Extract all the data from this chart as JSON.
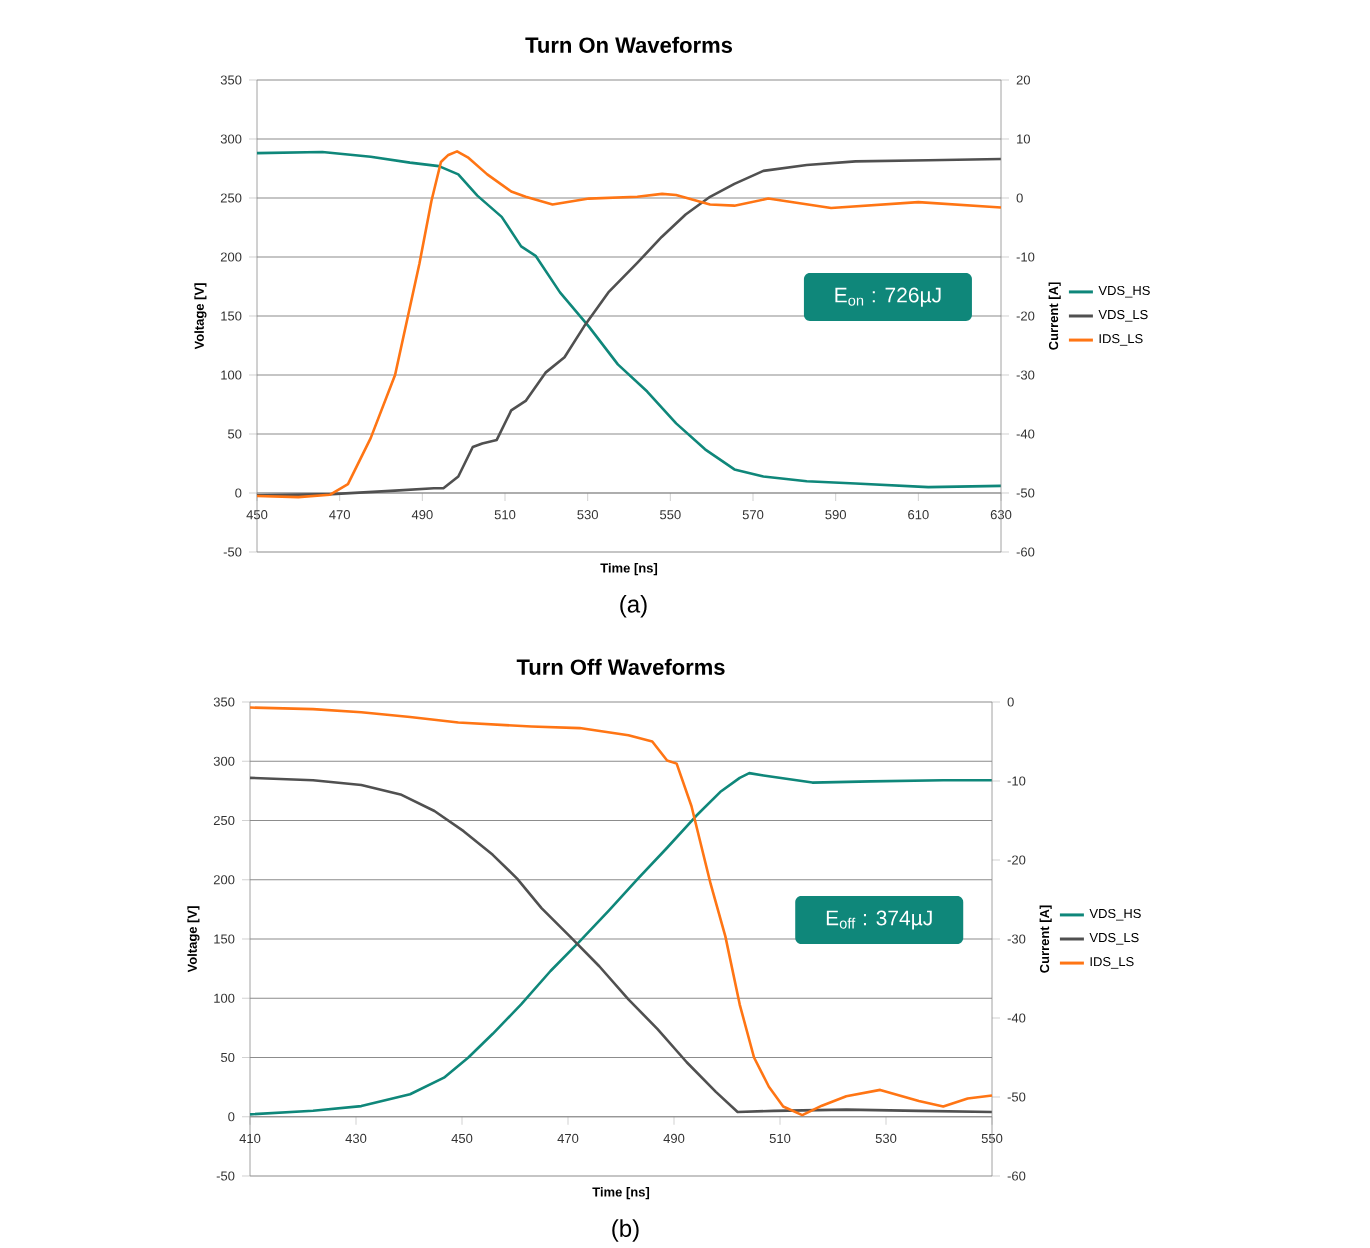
{
  "chart_data": [
    {
      "type": "line",
      "title": "Turn On Waveforms",
      "xlabel": "Time [ns]",
      "ylabel": "Voltage [V]",
      "y2label": "Current [A]",
      "xlim": [
        450,
        630
      ],
      "ylim": [
        -50,
        350
      ],
      "y2lim": [
        -60,
        20
      ],
      "xticks": [
        450,
        470,
        490,
        510,
        530,
        550,
        570,
        590,
        610,
        630
      ],
      "yticks": [
        -50,
        0,
        50,
        100,
        150,
        200,
        250,
        300,
        350
      ],
      "y2ticks": [
        -60,
        -50,
        -40,
        -30,
        -20,
        -10,
        0,
        10,
        20
      ],
      "grid": "y",
      "legend": "right",
      "annotations": [
        "E$_{on}$ : 726µJ",
        "(a)"
      ],
      "series": [
        {
          "name": "VDS_HS",
          "color": "#0f877a",
          "x": [
            450,
            465.8,
            477.5,
            487,
            494,
            498.7,
            503.3,
            509.2,
            513.9,
            517.4,
            523.3,
            530.3,
            537.3,
            544.4,
            551.4,
            558.4,
            565.5,
            572.5,
            583,
            594.8,
            612.4,
            630
          ],
          "values": [
            288,
            289,
            285,
            280,
            277,
            270,
            252,
            234,
            209,
            201,
            170,
            141,
            109,
            86,
            59,
            37,
            20,
            14,
            10,
            8,
            5,
            6
          ]
        },
        {
          "name": "VDS_LS",
          "color": "#505050",
          "x": [
            450,
            468.2,
            483.4,
            492.8,
            495.1,
            498.7,
            502.2,
            504.5,
            508,
            511.5,
            515,
            519.8,
            524.4,
            529.1,
            535,
            542,
            547.9,
            553.7,
            559.6,
            565.5,
            572.5,
            583,
            594.8,
            612.4,
            630
          ],
          "values": [
            -2,
            -1,
            2,
            4,
            4,
            14,
            39,
            42,
            45,
            70,
            78,
            102,
            115,
            141,
            170,
            195,
            217,
            236,
            251,
            262,
            273,
            278,
            281,
            282,
            283
          ]
        },
        {
          "name": "IDS_LS",
          "color": "#ff7514",
          "axis": "y2",
          "x": [
            450,
            460,
            467.6,
            472,
            477.5,
            483.4,
            489.3,
            492.2,
            494.5,
            496.3,
            498.4,
            501,
            505.7,
            511.5,
            515,
            521.5,
            530.3,
            542,
            548,
            551.4,
            559.6,
            565.5,
            573.7,
            588.9,
            610,
            630
          ],
          "values": [
            -50.5,
            -50.7,
            -50.3,
            -48.5,
            -40.7,
            -30,
            -11.1,
            -0.5,
            6.1,
            7.3,
            7.9,
            6.9,
            4,
            1.1,
            0.2,
            -1.1,
            -0.1,
            0.2,
            0.7,
            0.5,
            -1.1,
            -1.3,
            -0.1,
            -1.7,
            -0.7,
            -1.6
          ]
        }
      ]
    },
    {
      "type": "line",
      "title": "Turn Off Waveforms",
      "xlabel": "Time [ns]",
      "ylabel": "Voltage [V]",
      "y2label": "Current [A]",
      "xlim": [
        410,
        550
      ],
      "ylim": [
        -50,
        350
      ],
      "y2lim": [
        -60,
        0
      ],
      "xticks": [
        410,
        430,
        450,
        470,
        490,
        510,
        530,
        550
      ],
      "yticks": [
        -50,
        0,
        50,
        100,
        150,
        200,
        250,
        300,
        350
      ],
      "y2ticks": [
        -60,
        -50,
        -40,
        -30,
        -20,
        -10,
        0
      ],
      "grid": "y",
      "legend": "right",
      "annotations": [
        "E$_{off}$ : 374µJ",
        "(b)"
      ],
      "series": [
        {
          "name": "VDS_HS",
          "color": "#0f877a",
          "x": [
            410,
            421.9,
            431,
            440.2,
            446.6,
            451.2,
            455.8,
            461.2,
            466.7,
            472.2,
            477.7,
            483.2,
            488.7,
            494.2,
            498.7,
            502.4,
            504.2,
            506.9,
            516.1,
            527.1,
            540.8,
            550
          ],
          "values": [
            2,
            5,
            9,
            19,
            33,
            50,
            70,
            95,
            123,
            148,
            174,
            201,
            227,
            254,
            274,
            286,
            290,
            288,
            282,
            283,
            284,
            284
          ]
        },
        {
          "name": "VDS_LS",
          "color": "#505050",
          "x": [
            410,
            421.9,
            431,
            438.4,
            444.8,
            450.3,
            455.8,
            460.4,
            465,
            470.4,
            475.9,
            481.4,
            486.9,
            492.4,
            497.9,
            502,
            508.8,
            522.5,
            536.2,
            550
          ],
          "values": [
            286,
            284,
            280,
            272,
            258,
            241,
            221,
            201,
            176,
            152,
            127,
            99,
            74,
            46,
            21,
            4,
            5,
            6,
            5,
            4
          ]
        },
        {
          "name": "IDS_LS",
          "color": "#ff7514",
          "axis": "y2",
          "x": [
            410,
            421.9,
            431,
            440.2,
            449.3,
            463.1,
            472.2,
            481.4,
            485.9,
            488.7,
            490.5,
            493.3,
            496.9,
            499.7,
            502.4,
            505.1,
            507.9,
            510.6,
            514.2,
            517.9,
            522.5,
            528.9,
            536.2,
            540.8,
            545.4,
            550
          ],
          "values": [
            -0.7,
            -0.9,
            -1.3,
            -1.9,
            -2.6,
            -3.1,
            -3.3,
            -4.2,
            -5,
            -7.4,
            -7.8,
            -13.2,
            -23,
            -29.7,
            -38.3,
            -45,
            -48.7,
            -51.2,
            -52.3,
            -51.1,
            -49.9,
            -49.1,
            -50.5,
            -51.2,
            -50.2,
            -49.8
          ]
        }
      ]
    }
  ]
}
